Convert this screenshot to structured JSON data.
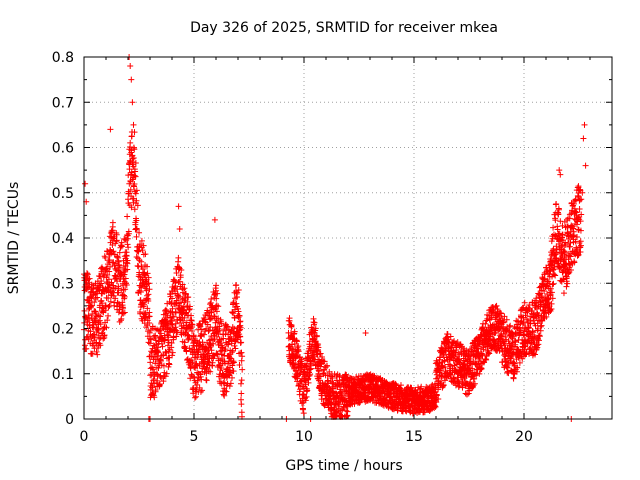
{
  "chart_data": {
    "type": "scatter",
    "title": "Day 326 of 2025, SRMTID for receiver mkea",
    "xlabel": "GPS time / hours",
    "ylabel": "SRMTID / TECUs",
    "xlim": [
      0,
      24
    ],
    "ylim": [
      0,
      0.8
    ],
    "xticks": [
      0,
      5,
      10,
      15,
      20
    ],
    "xtick_labels": [
      "0",
      "5",
      "10",
      "15",
      "20"
    ],
    "yticks": [
      0,
      0.1,
      0.2,
      0.3,
      0.4,
      0.5,
      0.6,
      0.7,
      0.8
    ],
    "ytick_labels": [
      "0",
      "0.1",
      "0.2",
      "0.3",
      "0.4",
      "0.5",
      "0.6",
      "0.7",
      "0.8"
    ],
    "grid": true,
    "marker": "+",
    "marker_color": "#ff0000",
    "series": [
      {
        "name": "SRMTID",
        "color": "#ff0000",
        "segments": [
          {
            "x_start": 0.0,
            "x_end": 3.0,
            "anchors": [
              [
                0.0,
                0.25
              ],
              [
                0.3,
                0.22
              ],
              [
                0.7,
                0.23
              ],
              [
                1.0,
                0.28
              ],
              [
                1.3,
                0.35
              ],
              [
                1.6,
                0.3
              ],
              [
                1.9,
                0.32
              ],
              [
                2.1,
                0.55
              ],
              [
                2.3,
                0.55
              ],
              [
                2.5,
                0.33
              ],
              [
                2.8,
                0.28
              ],
              [
                3.0,
                0.2
              ]
            ],
            "spread": 0.09
          },
          {
            "x_start": 3.0,
            "x_end": 5.0,
            "anchors": [
              [
                3.0,
                0.12
              ],
              [
                3.5,
                0.14
              ],
              [
                3.9,
                0.2
              ],
              [
                4.3,
                0.28
              ],
              [
                4.7,
                0.2
              ],
              [
                5.0,
                0.12
              ]
            ],
            "spread": 0.08
          },
          {
            "x_start": 5.0,
            "x_end": 7.2,
            "anchors": [
              [
                5.0,
                0.12
              ],
              [
                5.5,
                0.15
              ],
              [
                6.0,
                0.22
              ],
              [
                6.3,
                0.12
              ],
              [
                6.7,
                0.15
              ],
              [
                7.0,
                0.25
              ],
              [
                7.2,
                0.05
              ]
            ],
            "spread": 0.08
          },
          {
            "x_start": 9.3,
            "x_end": 12.0,
            "anchors": [
              [
                9.3,
                0.18
              ],
              [
                9.6,
                0.14
              ],
              [
                10.0,
                0.06
              ],
              [
                10.4,
                0.18
              ],
              [
                10.8,
                0.09
              ],
              [
                11.3,
                0.05
              ],
              [
                12.0,
                0.05
              ]
            ],
            "spread": 0.05
          },
          {
            "x_start": 12.0,
            "x_end": 16.0,
            "anchors": [
              [
                12.0,
                0.06
              ],
              [
                13.0,
                0.07
              ],
              [
                14.0,
                0.05
              ],
              [
                15.0,
                0.04
              ],
              [
                16.0,
                0.05
              ]
            ],
            "spread": 0.03
          },
          {
            "x_start": 16.0,
            "x_end": 19.0,
            "anchors": [
              [
                16.0,
                0.08
              ],
              [
                16.5,
                0.14
              ],
              [
                17.0,
                0.12
              ],
              [
                17.5,
                0.1
              ],
              [
                18.0,
                0.15
              ],
              [
                18.5,
                0.2
              ],
              [
                19.0,
                0.2
              ]
            ],
            "spread": 0.05
          },
          {
            "x_start": 19.0,
            "x_end": 21.2,
            "anchors": [
              [
                19.0,
                0.18
              ],
              [
                19.5,
                0.14
              ],
              [
                20.0,
                0.2
              ],
              [
                20.5,
                0.2
              ],
              [
                21.0,
                0.28
              ],
              [
                21.2,
                0.3
              ]
            ],
            "spread": 0.06
          },
          {
            "x_start": 21.2,
            "x_end": 22.6,
            "anchors": [
              [
                21.2,
                0.3
              ],
              [
                21.5,
                0.42
              ],
              [
                21.8,
                0.35
              ],
              [
                22.0,
                0.38
              ],
              [
                22.3,
                0.42
              ],
              [
                22.6,
                0.45
              ]
            ],
            "spread": 0.08
          }
        ],
        "outliers": [
          [
            0.05,
            0.52
          ],
          [
            0.1,
            0.48
          ],
          [
            1.2,
            0.64
          ],
          [
            2.05,
            0.8
          ],
          [
            2.1,
            0.78
          ],
          [
            2.15,
            0.75
          ],
          [
            2.2,
            0.7
          ],
          [
            2.25,
            0.65
          ],
          [
            4.3,
            0.47
          ],
          [
            4.35,
            0.42
          ],
          [
            5.95,
            0.44
          ],
          [
            12.8,
            0.19
          ],
          [
            21.6,
            0.55
          ],
          [
            21.65,
            0.54
          ],
          [
            22.75,
            0.65
          ],
          [
            22.7,
            0.62
          ],
          [
            22.8,
            0.56
          ],
          [
            22.65,
            0.5
          ],
          [
            2.95,
            0.0
          ],
          [
            3.0,
            0.0
          ],
          [
            9.2,
            0.0
          ],
          [
            10.3,
            0.0
          ],
          [
            22.15,
            0.0
          ]
        ]
      }
    ]
  }
}
